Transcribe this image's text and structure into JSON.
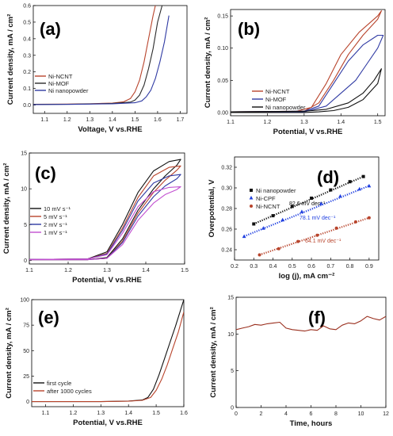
{
  "chart_data": [
    {
      "id": "a",
      "type": "line",
      "panel_label": "(a)",
      "xlabel": "Voltage, V vs.RHE",
      "ylabel": "Current density, mA / cm²",
      "xlim": [
        1.05,
        1.73
      ],
      "ylim": [
        -0.05,
        0.6
      ],
      "xticks": [
        1.1,
        1.2,
        1.3,
        1.4,
        1.5,
        1.6,
        1.7
      ],
      "yticks": [
        0.0,
        0.1,
        0.2,
        0.3,
        0.4,
        0.5,
        0.6
      ],
      "xtick_labels": [
        "1.1",
        "1.2",
        "1.3",
        "1.4",
        "1.5",
        "1.6",
        "1.7"
      ],
      "ytick_labels": [
        "0.0",
        "0.1",
        "0.2",
        "0.3",
        "0.4",
        "0.5",
        "0.6"
      ],
      "legend_position": "center-left",
      "series": [
        {
          "name": "Ni-NCNT",
          "color": "#b8442c",
          "x": [
            1.05,
            1.2,
            1.3,
            1.4,
            1.45,
            1.48,
            1.5,
            1.52,
            1.54,
            1.56,
            1.58,
            1.59
          ],
          "y": [
            0.005,
            0.006,
            0.008,
            0.012,
            0.02,
            0.04,
            0.08,
            0.15,
            0.26,
            0.4,
            0.54,
            0.6
          ]
        },
        {
          "name": "Ni-MOF",
          "color": "#2b2b2b",
          "x": [
            1.05,
            1.2,
            1.3,
            1.4,
            1.48,
            1.5,
            1.52,
            1.54,
            1.56,
            1.58,
            1.6,
            1.62
          ],
          "y": [
            0.004,
            0.005,
            0.007,
            0.01,
            0.018,
            0.03,
            0.06,
            0.12,
            0.22,
            0.34,
            0.5,
            0.6
          ]
        },
        {
          "name": "Ni nanopowder",
          "color": "#2f3aa3",
          "x": [
            1.05,
            1.2,
            1.3,
            1.4,
            1.5,
            1.53,
            1.55,
            1.57,
            1.59,
            1.61,
            1.63,
            1.65
          ],
          "y": [
            0.003,
            0.004,
            0.006,
            0.008,
            0.014,
            0.025,
            0.05,
            0.09,
            0.16,
            0.26,
            0.38,
            0.54
          ]
        }
      ]
    },
    {
      "id": "b",
      "type": "line",
      "panel_label": "(b)",
      "xlabel": "Potential, V vs.RHE",
      "ylabel": "Current density, mA / cm²",
      "xlim": [
        1.1,
        1.52
      ],
      "ylim": [
        -0.005,
        0.16
      ],
      "xticks": [
        1.1,
        1.2,
        1.3,
        1.4,
        1.5
      ],
      "yticks": [
        0.0,
        0.05,
        0.1,
        0.15
      ],
      "xtick_labels": [
        "1.1",
        "1.2",
        "1.3",
        "1.4",
        "1.5"
      ],
      "ytick_labels": [
        "0.00",
        "0.05",
        "0.10",
        "0.15"
      ],
      "legend_position": "lower-center",
      "series": [
        {
          "name": "Ni-NCNT",
          "color": "#b8442c",
          "x": [
            1.1,
            1.28,
            1.32,
            1.36,
            1.4,
            1.45,
            1.5,
            1.51,
            1.5,
            1.46,
            1.42,
            1.38,
            1.34,
            1.3,
            1.2,
            1.1
          ],
          "y": [
            0.001,
            0.002,
            0.008,
            0.045,
            0.09,
            0.125,
            0.15,
            0.158,
            0.145,
            0.12,
            0.09,
            0.05,
            0.015,
            0.002,
            0.0,
            0.0
          ]
        },
        {
          "name": "Ni-MOF",
          "color": "#2f3aa3",
          "x": [
            1.1,
            1.3,
            1.34,
            1.38,
            1.42,
            1.46,
            1.5,
            1.515,
            1.5,
            1.47,
            1.44,
            1.4,
            1.36,
            1.3,
            1.2,
            1.1
          ],
          "y": [
            0.001,
            0.002,
            0.01,
            0.045,
            0.08,
            0.105,
            0.12,
            0.12,
            0.1,
            0.075,
            0.05,
            0.03,
            0.01,
            0.001,
            0.0,
            0.0
          ]
        },
        {
          "name": "Ni nanopowder",
          "color": "#111111",
          "x": [
            1.1,
            1.3,
            1.36,
            1.42,
            1.46,
            1.49,
            1.51,
            1.5,
            1.46,
            1.42,
            1.38,
            1.34,
            1.3,
            1.2,
            1.1
          ],
          "y": [
            0.001,
            0.002,
            0.005,
            0.015,
            0.03,
            0.05,
            0.068,
            0.045,
            0.02,
            0.008,
            0.003,
            0.001,
            0.0,
            0.0,
            0.0
          ]
        }
      ]
    },
    {
      "id": "c",
      "type": "line",
      "panel_label": "(c)",
      "xlabel": "Potential, V vs.RHE",
      "ylabel": "Current density, mA / cm²",
      "xlim": [
        1.1,
        1.5
      ],
      "ylim": [
        -0.5,
        15
      ],
      "xticks": [
        1.1,
        1.2,
        1.3,
        1.4,
        1.5
      ],
      "yticks": [
        0,
        5,
        10,
        15
      ],
      "xtick_labels": [
        "1.1",
        "1.2",
        "1.3",
        "1.4",
        "1.5"
      ],
      "ytick_labels": [
        "0",
        "5",
        "10",
        "15"
      ],
      "legend_position": "center-left",
      "series": [
        {
          "name": "10 mV s⁻¹",
          "color": "#111111",
          "x": [
            1.0,
            1.25,
            1.3,
            1.34,
            1.38,
            1.42,
            1.46,
            1.49,
            1.48,
            1.45,
            1.42,
            1.38,
            1.34,
            1.3,
            1.25,
            1.0
          ],
          "y": [
            0.1,
            0.2,
            1.2,
            5.0,
            9.5,
            12.5,
            13.8,
            14.1,
            13.3,
            11.8,
            10.0,
            7.0,
            3.0,
            0.4,
            0.1,
            0.1
          ]
        },
        {
          "name": "5 mV s⁻¹",
          "color": "#b8442c",
          "x": [
            1.0,
            1.25,
            1.3,
            1.34,
            1.38,
            1.42,
            1.46,
            1.49,
            1.48,
            1.45,
            1.42,
            1.38,
            1.34,
            1.3,
            1.25,
            1.0
          ],
          "y": [
            0.1,
            0.2,
            1.0,
            4.5,
            8.8,
            11.8,
            13.0,
            13.2,
            12.6,
            11.2,
            9.5,
            6.6,
            2.7,
            0.3,
            0.1,
            0.1
          ]
        },
        {
          "name": "2 mV s⁻¹",
          "color": "#2f3aa3",
          "x": [
            1.0,
            1.25,
            1.3,
            1.34,
            1.38,
            1.42,
            1.46,
            1.49,
            1.48,
            1.45,
            1.42,
            1.38,
            1.34,
            1.3,
            1.25,
            1.0
          ],
          "y": [
            0.1,
            0.2,
            0.9,
            4.2,
            8.3,
            10.8,
            11.8,
            12.0,
            11.4,
            10.4,
            8.9,
            6.2,
            2.5,
            0.3,
            0.1,
            0.1
          ]
        },
        {
          "name": "1 mV s⁻¹",
          "color": "#c24fd0",
          "x": [
            1.0,
            1.25,
            1.3,
            1.34,
            1.38,
            1.42,
            1.46,
            1.49,
            1.48,
            1.45,
            1.42,
            1.38,
            1.34,
            1.3,
            1.25,
            1.0
          ],
          "y": [
            0.1,
            0.2,
            0.8,
            3.8,
            7.5,
            9.6,
            10.2,
            10.3,
            9.9,
            9.2,
            8.0,
            5.6,
            2.2,
            0.3,
            0.1,
            0.1
          ]
        }
      ]
    },
    {
      "id": "d",
      "type": "scatter",
      "panel_label": "(d)",
      "xlabel": "log (j), mA cm⁻²",
      "ylabel": "Overpotential, V",
      "xlim": [
        0.2,
        0.95
      ],
      "ylim": [
        0.23,
        0.33
      ],
      "xticks": [
        0.2,
        0.3,
        0.4,
        0.5,
        0.6,
        0.7,
        0.8,
        0.9
      ],
      "yticks": [
        0.24,
        0.26,
        0.28,
        0.3,
        0.32
      ],
      "xtick_labels": [
        "0.2",
        "0.3",
        "0.4",
        "0.5",
        "0.6",
        "0.7",
        "0.8",
        "0.9"
      ],
      "ytick_labels": [
        "0.24",
        "0.26",
        "0.28",
        "0.30",
        "0.32"
      ],
      "legend_position": "upper-left",
      "series": [
        {
          "name": "Ni nanopowder",
          "color": "#111111",
          "marker": "square",
          "x": [
            0.3,
            0.4,
            0.5,
            0.6,
            0.7,
            0.8,
            0.87
          ],
          "y": [
            0.265,
            0.273,
            0.282,
            0.29,
            0.298,
            0.306,
            0.311
          ]
        },
        {
          "name": "Ni-CPF",
          "color": "#1f3fe0",
          "marker": "triangle",
          "x": [
            0.25,
            0.35,
            0.45,
            0.55,
            0.65,
            0.75,
            0.85,
            0.9
          ],
          "y": [
            0.253,
            0.261,
            0.269,
            0.277,
            0.285,
            0.292,
            0.299,
            0.302
          ]
        },
        {
          "name": "Ni-NCNT",
          "color": "#b8442c",
          "marker": "circle",
          "x": [
            0.33,
            0.43,
            0.53,
            0.63,
            0.73,
            0.83,
            0.9
          ],
          "y": [
            0.235,
            0.241,
            0.248,
            0.254,
            0.261,
            0.267,
            0.271
          ]
        }
      ],
      "annotations": [
        {
          "text": "82.6 mV dec⁻¹",
          "color": "#111111"
        },
        {
          "text": "78.1 mV dec⁻¹",
          "color": "#1f3fe0"
        },
        {
          "text": "64.1 mV dec⁻¹",
          "color": "#b8442c"
        }
      ]
    },
    {
      "id": "e",
      "type": "line",
      "panel_label": "(e)",
      "xlabel": "Potential, V vs.RHE",
      "ylabel": "Current density, mA / cm²",
      "xlim": [
        1.05,
        1.6
      ],
      "ylim": [
        -5,
        100
      ],
      "xticks": [
        1.1,
        1.2,
        1.3,
        1.4,
        1.5,
        1.6
      ],
      "yticks": [
        0,
        25,
        50,
        75,
        100
      ],
      "xtick_labels": [
        "1.1",
        "1.2",
        "1.3",
        "1.4",
        "1.5",
        "1.6"
      ],
      "ytick_labels": [
        "0",
        "25",
        "50",
        "75",
        "100"
      ],
      "legend_position": "center-left",
      "series": [
        {
          "name": "first cycle",
          "color": "#111111",
          "x": [
            1.05,
            1.3,
            1.4,
            1.45,
            1.47,
            1.49,
            1.51,
            1.53,
            1.55,
            1.57,
            1.6
          ],
          "y": [
            0,
            0,
            0.5,
            1.5,
            4,
            12,
            26,
            42,
            58,
            74,
            100
          ]
        },
        {
          "name": "after 1000 cycles",
          "color": "#b8442c",
          "x": [
            1.05,
            1.3,
            1.4,
            1.45,
            1.48,
            1.5,
            1.52,
            1.54,
            1.56,
            1.58,
            1.6
          ],
          "y": [
            0,
            0,
            0.4,
            1.2,
            4,
            11,
            22,
            36,
            52,
            68,
            88
          ]
        }
      ]
    },
    {
      "id": "f",
      "type": "line",
      "panel_label": "(f)",
      "xlabel": "Time, hours",
      "ylabel": "Current density, mA / cm²",
      "xlim": [
        0,
        12
      ],
      "ylim": [
        0,
        15
      ],
      "xticks": [
        0,
        2,
        4,
        6,
        8,
        10,
        12
      ],
      "yticks": [
        0,
        5,
        10,
        15
      ],
      "xtick_labels": [
        "0",
        "2",
        "4",
        "6",
        "8",
        "10",
        "12"
      ],
      "ytick_labels": [
        "0",
        "5",
        "10",
        "15"
      ],
      "series": [
        {
          "name": "",
          "color": "#9a2f1e",
          "x": [
            0,
            0.5,
            1,
            1.5,
            2,
            2.5,
            3,
            3.5,
            4,
            4.5,
            5,
            5.5,
            6,
            6.5,
            7,
            7.5,
            8,
            8.5,
            9,
            9.5,
            10,
            10.5,
            11,
            11.5,
            12
          ],
          "y": [
            10.6,
            10.8,
            11.0,
            11.3,
            11.2,
            11.4,
            11.5,
            11.6,
            10.8,
            10.6,
            10.5,
            10.4,
            10.6,
            10.5,
            11.1,
            10.7,
            10.6,
            11.2,
            11.5,
            11.4,
            11.8,
            12.4,
            12.1,
            11.9,
            12.4
          ]
        }
      ]
    }
  ]
}
